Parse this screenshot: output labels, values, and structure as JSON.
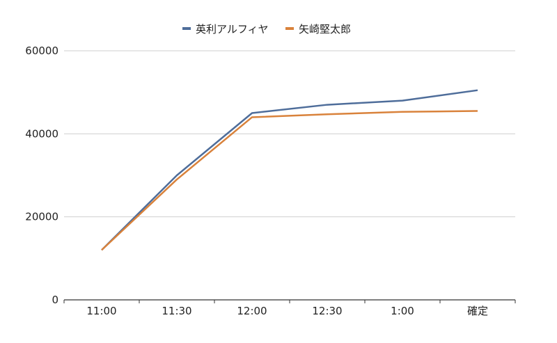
{
  "chart_data": {
    "type": "line",
    "categories": [
      "11:00",
      "11:30",
      "12:00",
      "12:30",
      "1:00",
      "確定"
    ],
    "series": [
      {
        "name": "英利アルフィヤ",
        "color": "#4e6d9a",
        "values": [
          12000,
          30000,
          45000,
          47000,
          48000,
          50500
        ]
      },
      {
        "name": "矢崎堅太郎",
        "color": "#d9823b",
        "values": [
          12000,
          29000,
          44000,
          44700,
          45300,
          45500
        ]
      }
    ],
    "ylim": [
      0,
      60000
    ],
    "yticks": [
      0,
      20000,
      40000,
      60000
    ],
    "grid": true,
    "legend_position": "top-center",
    "title": "",
    "xlabel": "",
    "ylabel": ""
  }
}
